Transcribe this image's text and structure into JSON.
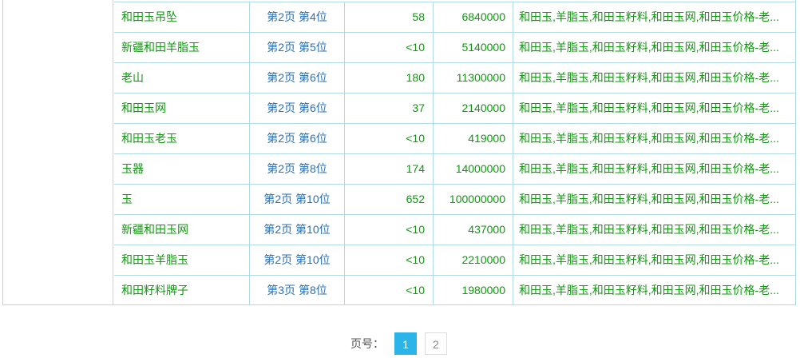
{
  "table": {
    "rows": [
      {
        "keyword": "和田玉吊坠",
        "rank": "第2页 第4位",
        "index": "58",
        "results": "6840000",
        "title": "和田玉,羊脂玉,和田玉籽料,和田玉网,和田玉价格-老..."
      },
      {
        "keyword": "新疆和田羊脂玉",
        "rank": "第2页 第5位",
        "index": "<10",
        "results": "5140000",
        "title": "和田玉,羊脂玉,和田玉籽料,和田玉网,和田玉价格-老..."
      },
      {
        "keyword": "老山",
        "rank": "第2页 第6位",
        "index": "180",
        "results": "11300000",
        "title": "和田玉,羊脂玉,和田玉籽料,和田玉网,和田玉价格-老..."
      },
      {
        "keyword": "和田玉网",
        "rank": "第2页 第6位",
        "index": "37",
        "results": "2140000",
        "title": "和田玉,羊脂玉,和田玉籽料,和田玉网,和田玉价格-老..."
      },
      {
        "keyword": "和田玉老玉",
        "rank": "第2页 第6位",
        "index": "<10",
        "results": "419000",
        "title": "和田玉,羊脂玉,和田玉籽料,和田玉网,和田玉价格-老..."
      },
      {
        "keyword": "玉器",
        "rank": "第2页 第8位",
        "index": "174",
        "results": "14000000",
        "title": "和田玉,羊脂玉,和田玉籽料,和田玉网,和田玉价格-老..."
      },
      {
        "keyword": "玉",
        "rank": "第2页 第10位",
        "index": "652",
        "results": "100000000",
        "title": "和田玉,羊脂玉,和田玉籽料,和田玉网,和田玉价格-老..."
      },
      {
        "keyword": "新疆和田玉网",
        "rank": "第2页 第10位",
        "index": "<10",
        "results": "437000",
        "title": "和田玉,羊脂玉,和田玉籽料,和田玉网,和田玉价格-老..."
      },
      {
        "keyword": "和田玉羊脂玉",
        "rank": "第2页 第10位",
        "index": "<10",
        "results": "2210000",
        "title": "和田玉,羊脂玉,和田玉籽料,和田玉网,和田玉价格-老..."
      },
      {
        "keyword": "和田籽料牌子",
        "rank": "第3页 第8位",
        "index": "<10",
        "results": "1980000",
        "title": "和田玉,羊脂玉,和田玉籽料,和田玉网,和田玉价格-老..."
      }
    ]
  },
  "pagination": {
    "label": "页号：",
    "pages": [
      {
        "label": "1",
        "active": true
      },
      {
        "label": "2",
        "active": false
      }
    ]
  },
  "colors": {
    "keyword_green": "#129612",
    "rank_link_blue": "#2b6fb2",
    "table_border_blue": "#b2d9e6",
    "pager_active_cyan": "#2ab4e8"
  }
}
